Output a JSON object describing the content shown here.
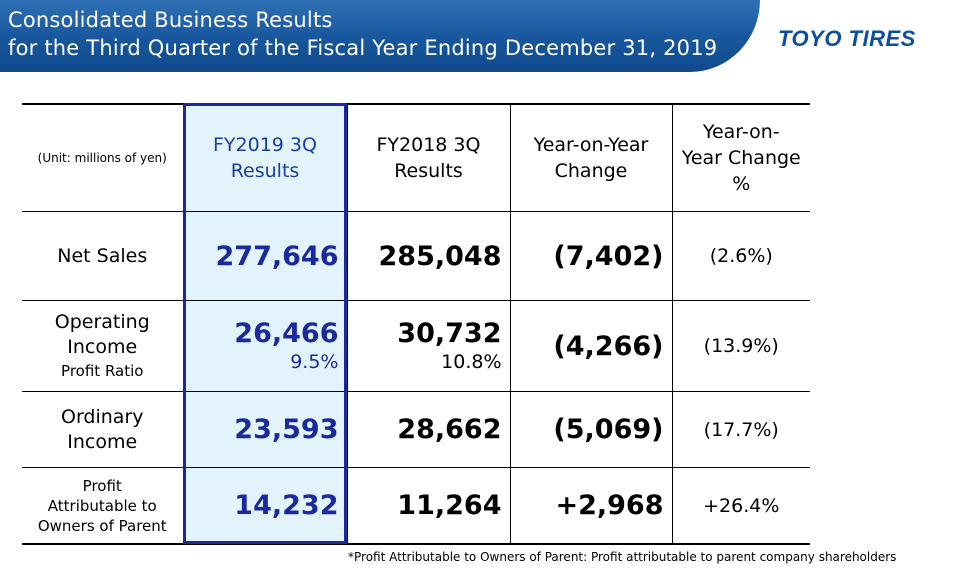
{
  "header": {
    "title_line1": "Consolidated Business Results",
    "title_line2": "for the Third Quarter of the Fiscal Year Ending December 31, 2019",
    "logo_text": "TOYO TIRES"
  },
  "table": {
    "unit_label": "(Unit: millions of yen)",
    "columns": [
      {
        "line1": "FY2019 3Q",
        "line2": "Results"
      },
      {
        "line1": "FY2018 3Q",
        "line2": "Results"
      },
      {
        "line1": "Year-on-Year",
        "line2": "Change"
      },
      {
        "line1": "Year-on-",
        "line2": "Year Change",
        "line3": "%"
      }
    ],
    "rows": [
      {
        "label": "Net Sales",
        "fy2019": "277,646",
        "fy2018": "285,048",
        "change": "(7,402)",
        "change_pct": "(2.6%)"
      },
      {
        "label_line1": "Operating",
        "label_line2": "Income",
        "label_sub": "Profit Ratio",
        "fy2019": "26,466",
        "fy2019_ratio": "9.5%",
        "fy2018": "30,732",
        "fy2018_ratio": "10.8%",
        "change": "(4,266)",
        "change_pct": "(13.9%)"
      },
      {
        "label_line1": "Ordinary",
        "label_line2": "Income",
        "fy2019": "23,593",
        "fy2018": "28,662",
        "change": "(5,069)",
        "change_pct": "(17.7%)"
      },
      {
        "label_line1": "Profit",
        "label_line2": "Attributable to",
        "label_line3": "Owners of Parent",
        "fy2019": "14,232",
        "fy2018": "11,264",
        "change": "+2,968",
        "change_pct": "+26.4%"
      }
    ]
  },
  "footnote": "*Profit Attributable to Owners of Parent: Profit attributable to parent company shareholders",
  "colors": {
    "header_blue": "#17569c",
    "highlight_bg": "#e2f3fb",
    "highlight_border": "#1a2a9c",
    "logo_blue": "#0d4ea3"
  }
}
